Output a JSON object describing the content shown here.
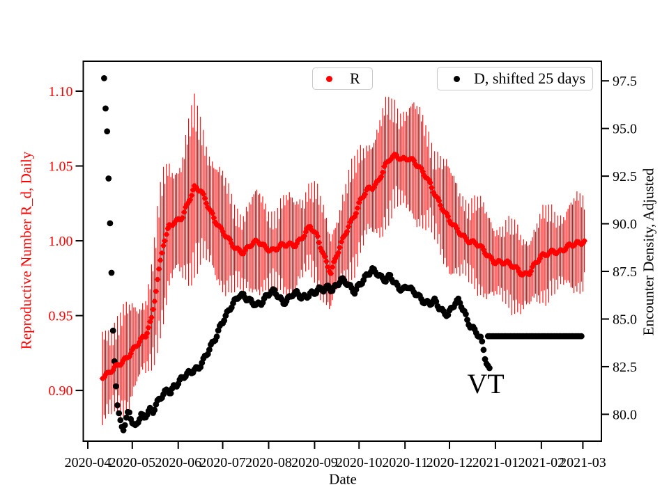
{
  "figure": {
    "background": "#ffffff"
  },
  "legend": [
    {
      "label": "R",
      "marker": "dot",
      "marker_color": "#ff0000"
    },
    {
      "label": "D, shifted 25 days",
      "marker": "dot",
      "marker_color": "#000000"
    }
  ],
  "annotation": {
    "text": "VT",
    "day": 268.5,
    "y_right_value": 81.6
  },
  "chart_data": {
    "type": "scatter",
    "title": "",
    "xlabel": "Date",
    "grid": false,
    "x_axis": {
      "start_date": "2020-04-01",
      "lim_days": [
        -3.06,
        346.5
      ],
      "tick_days": [
        0,
        30,
        61,
        91,
        122,
        153,
        183,
        214,
        244,
        275,
        306,
        334
      ],
      "tick_labels": [
        "2020-04",
        "2020-05",
        "2020-06",
        "2020-07",
        "2020-08",
        "2020-09",
        "2020-10",
        "2020-11",
        "2020-12",
        "2021-01",
        "2021-02",
        "2021-03"
      ]
    },
    "y_left": {
      "label": "Reproductive Number R_d, Daily",
      "color": "#ff0000",
      "lim": [
        0.8661,
        1.12
      ],
      "tick_values": [
        1.1,
        1.05,
        1.0,
        0.95,
        0.9
      ],
      "tick_labels": [
        "1.10",
        "1.05",
        "1.00",
        "0.95",
        "0.90"
      ]
    },
    "y_right": {
      "label": "Encounter Density, Adjusted",
      "color": "#000000",
      "lim": [
        78.59,
        98.53
      ],
      "tick_values": [
        97.5,
        95.0,
        92.5,
        90.0,
        87.5,
        85.0,
        82.5,
        80.0
      ],
      "tick_labels": [
        "97.5",
        "95.0",
        "92.5",
        "90.0",
        "87.5",
        "85.0",
        "82.5",
        "80.0"
      ]
    },
    "series": [
      {
        "name": "R",
        "axis": "left",
        "color": "#ff0000",
        "style": "dots-with-daily-error-bars",
        "day_range": [
          10,
          335
        ],
        "keypoints_day_value_err": [
          [
            10,
            0.91,
            0.03
          ],
          [
            14,
            0.911,
            0.031
          ],
          [
            19,
            0.915,
            0.033
          ],
          [
            24,
            0.92,
            0.032
          ],
          [
            30,
            0.927,
            0.028
          ],
          [
            34,
            0.931,
            0.025
          ],
          [
            39,
            0.936,
            0.028
          ],
          [
            43,
            0.948,
            0.034
          ],
          [
            47,
            0.975,
            0.04
          ],
          [
            51,
            0.998,
            0.044
          ],
          [
            55,
            1.009,
            0.042
          ],
          [
            60,
            1.013,
            0.04
          ],
          [
            64,
            1.017,
            0.042
          ],
          [
            68,
            1.027,
            0.047
          ],
          [
            72,
            1.035,
            0.05
          ],
          [
            76,
            1.033,
            0.047
          ],
          [
            80,
            1.026,
            0.044
          ],
          [
            85,
            1.016,
            0.04
          ],
          [
            90,
            1.007,
            0.035
          ],
          [
            95,
            1.0,
            0.031
          ],
          [
            100,
            0.995,
            0.029
          ],
          [
            105,
            0.993,
            0.028
          ],
          [
            110,
            0.997,
            0.029
          ],
          [
            115,
            0.999,
            0.03
          ],
          [
            120,
            0.996,
            0.029
          ],
          [
            125,
            0.994,
            0.028
          ],
          [
            130,
            0.996,
            0.029
          ],
          [
            135,
            0.997,
            0.029
          ],
          [
            140,
            0.998,
            0.029
          ],
          [
            145,
            1.003,
            0.03
          ],
          [
            150,
            1.009,
            0.031
          ],
          [
            155,
            1.002,
            0.029
          ],
          [
            160,
            0.989,
            0.027
          ],
          [
            164,
            0.979,
            0.026
          ],
          [
            168,
            0.99,
            0.028
          ],
          [
            172,
            1.0,
            0.03
          ],
          [
            176,
            1.01,
            0.032
          ],
          [
            180,
            1.018,
            0.033
          ],
          [
            184,
            1.027,
            0.034
          ],
          [
            188,
            1.033,
            0.035
          ],
          [
            192,
            1.035,
            0.035
          ],
          [
            196,
            1.04,
            0.035
          ],
          [
            200,
            1.05,
            0.036
          ],
          [
            204,
            1.055,
            0.036
          ],
          [
            208,
            1.056,
            0.036
          ],
          [
            212,
            1.054,
            0.035
          ],
          [
            216,
            1.056,
            0.035
          ],
          [
            220,
            1.054,
            0.035
          ],
          [
            224,
            1.048,
            0.034
          ],
          [
            229,
            1.041,
            0.034
          ],
          [
            234,
            1.032,
            0.033
          ],
          [
            239,
            1.023,
            0.032
          ],
          [
            244,
            1.013,
            0.031
          ],
          [
            249,
            1.007,
            0.03
          ],
          [
            254,
            1.003,
            0.029
          ],
          [
            258,
            1.0,
            0.028
          ],
          [
            262,
            0.998,
            0.028
          ],
          [
            266,
            0.994,
            0.027
          ],
          [
            270,
            0.99,
            0.027
          ],
          [
            274,
            0.987,
            0.026
          ],
          [
            278,
            0.986,
            0.026
          ],
          [
            282,
            0.985,
            0.026
          ],
          [
            286,
            0.983,
            0.026
          ],
          [
            290,
            0.981,
            0.025
          ],
          [
            294,
            0.978,
            0.025
          ],
          [
            298,
            0.979,
            0.026
          ],
          [
            302,
            0.984,
            0.026
          ],
          [
            306,
            0.989,
            0.027
          ],
          [
            310,
            0.992,
            0.027
          ],
          [
            314,
            0.994,
            0.027
          ],
          [
            318,
            0.992,
            0.027
          ],
          [
            322,
            0.994,
            0.027
          ],
          [
            326,
            0.997,
            0.028
          ],
          [
            330,
            0.999,
            0.028
          ],
          [
            335,
            1.0,
            0.028
          ]
        ]
      },
      {
        "name": "D, shifted 25 days",
        "axis": "right",
        "color": "#000000",
        "style": "dots",
        "day_range": [
          11,
          271
        ],
        "keypoints_day_value": [
          [
            11,
            97.6
          ],
          [
            12,
            96.1
          ],
          [
            13,
            95.0
          ],
          [
            14,
            92.5
          ],
          [
            15,
            90.0
          ],
          [
            16,
            87.3
          ],
          [
            17,
            84.3
          ],
          [
            18,
            82.8
          ],
          [
            19,
            81.5
          ],
          [
            20,
            80.4
          ],
          [
            21,
            79.9
          ],
          [
            22,
            79.6
          ],
          [
            23,
            79.4
          ],
          [
            24,
            79.3
          ],
          [
            25,
            79.5
          ],
          [
            26,
            79.8
          ],
          [
            27,
            80.1
          ],
          [
            28,
            80.2
          ],
          [
            29,
            79.9
          ],
          [
            30,
            79.6
          ],
          [
            31,
            79.4
          ],
          [
            32,
            79.3
          ],
          [
            34,
            79.6
          ],
          [
            36,
            79.9
          ],
          [
            38,
            79.8
          ],
          [
            40,
            80.1
          ],
          [
            42,
            80.3
          ],
          [
            44,
            80.2
          ],
          [
            46,
            80.5
          ],
          [
            48,
            80.7
          ],
          [
            50,
            80.9
          ],
          [
            52,
            81.1
          ],
          [
            54,
            81.3
          ],
          [
            56,
            81.2
          ],
          [
            58,
            81.5
          ],
          [
            60,
            81.6
          ],
          [
            63,
            81.8
          ],
          [
            66,
            82.0
          ],
          [
            69,
            82.2
          ],
          [
            72,
            82.4
          ],
          [
            75,
            82.5
          ],
          [
            78,
            82.8
          ],
          [
            81,
            83.2
          ],
          [
            84,
            83.7
          ],
          [
            87,
            84.2
          ],
          [
            90,
            84.8
          ],
          [
            93,
            85.1
          ],
          [
            96,
            85.5
          ],
          [
            99,
            85.9
          ],
          [
            102,
            86.3
          ],
          [
            105,
            86.3
          ],
          [
            108,
            86.0
          ],
          [
            111,
            85.8
          ],
          [
            114,
            85.7
          ],
          [
            117,
            85.9
          ],
          [
            120,
            86.2
          ],
          [
            123,
            86.4
          ],
          [
            126,
            86.4
          ],
          [
            129,
            86.1
          ],
          [
            132,
            85.9
          ],
          [
            135,
            86.1
          ],
          [
            138,
            86.3
          ],
          [
            141,
            86.3
          ],
          [
            144,
            86.1
          ],
          [
            147,
            86.2
          ],
          [
            150,
            86.4
          ],
          [
            153,
            86.4
          ],
          [
            156,
            86.5
          ],
          [
            159,
            86.5
          ],
          [
            162,
            86.7
          ],
          [
            165,
            86.6
          ],
          [
            168,
            86.8
          ],
          [
            171,
            87.0
          ],
          [
            174,
            86.9
          ],
          [
            177,
            86.7
          ],
          [
            180,
            86.5
          ],
          [
            183,
            86.8
          ],
          [
            186,
            87.0
          ],
          [
            189,
            87.3
          ],
          [
            192,
            87.6
          ],
          [
            195,
            87.5
          ],
          [
            198,
            87.2
          ],
          [
            201,
            87.0
          ],
          [
            204,
            87.2
          ],
          [
            207,
            86.9
          ],
          [
            210,
            86.7
          ],
          [
            213,
            86.6
          ],
          [
            216,
            86.7
          ],
          [
            219,
            86.4
          ],
          [
            222,
            86.3
          ],
          [
            225,
            86.1
          ],
          [
            228,
            85.9
          ],
          [
            231,
            85.8
          ],
          [
            234,
            85.9
          ],
          [
            237,
            85.6
          ],
          [
            240,
            85.4
          ],
          [
            243,
            85.3
          ],
          [
            246,
            85.6
          ],
          [
            248,
            85.8
          ],
          [
            250,
            85.9
          ],
          [
            252,
            85.7
          ],
          [
            254,
            85.4
          ],
          [
            256,
            85.0
          ],
          [
            258,
            84.7
          ],
          [
            260,
            84.5
          ],
          [
            262,
            84.3
          ],
          [
            264,
            84.0
          ],
          [
            265,
            83.9
          ],
          [
            266,
            83.7
          ],
          [
            267,
            83.4
          ],
          [
            268,
            83.0
          ],
          [
            269,
            82.7
          ],
          [
            270,
            82.5
          ],
          [
            271,
            82.4
          ]
        ],
        "flat_segment": {
          "day_range": [
            270,
            333
          ],
          "value": 84.1
        }
      }
    ]
  }
}
